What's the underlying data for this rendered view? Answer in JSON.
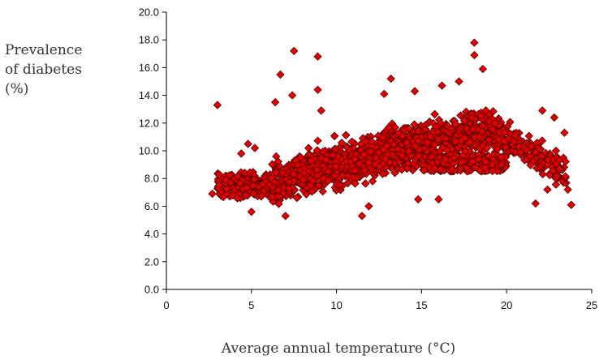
{
  "chart_data": {
    "type": "scatter",
    "title": "",
    "ylabel_lines": [
      "Prevalence",
      "of diabetes",
      "(%)"
    ],
    "xlabel": "Average annual temperature (°C)",
    "xlim": [
      0,
      25
    ],
    "ylim": [
      0,
      20
    ],
    "xticks": [
      "0",
      "5",
      "10",
      "15",
      "20",
      "25"
    ],
    "yticks": [
      "0.0",
      "2.0",
      "4.0",
      "6.0",
      "8.0",
      "10.0",
      "12.0",
      "14.0",
      "16.0",
      "18.0",
      "20.0"
    ],
    "grid": false,
    "legend": "none",
    "marker": {
      "shape": "diamond",
      "fill": "#e00000",
      "stroke": "#5a0000"
    },
    "series": [
      {
        "values_desc": "dense point cloud",
        "points": [
          [
            3.0,
            13.3
          ],
          [
            6.7,
            15.5
          ],
          [
            7.5,
            17.2
          ],
          [
            8.9,
            16.8
          ],
          [
            7.4,
            14.0
          ],
          [
            6.4,
            13.5
          ],
          [
            8.9,
            14.4
          ],
          [
            9.1,
            12.9
          ],
          [
            11.9,
            6.0
          ],
          [
            11.5,
            5.3
          ],
          [
            7.0,
            5.3
          ],
          [
            5.0,
            5.6
          ],
          [
            16.0,
            6.5
          ],
          [
            14.8,
            6.5
          ],
          [
            18.1,
            17.8
          ],
          [
            18.1,
            16.9
          ],
          [
            18.6,
            15.9
          ],
          [
            17.2,
            15.0
          ],
          [
            16.2,
            14.7
          ],
          [
            13.2,
            15.2
          ],
          [
            14.6,
            14.3
          ],
          [
            12.8,
            14.1
          ],
          [
            21.7,
            6.2
          ],
          [
            23.8,
            6.1
          ],
          [
            23.6,
            7.2
          ],
          [
            22.4,
            7.2
          ],
          [
            22.8,
            12.4
          ],
          [
            22.1,
            12.9
          ],
          [
            23.4,
            11.3
          ],
          [
            22.9,
            10.0
          ],
          [
            2.7,
            6.9
          ],
          [
            3.5,
            7.9
          ],
          [
            4.4,
            9.8
          ],
          [
            5.2,
            10.2
          ],
          [
            4.8,
            10.5
          ]
        ]
      }
    ]
  }
}
